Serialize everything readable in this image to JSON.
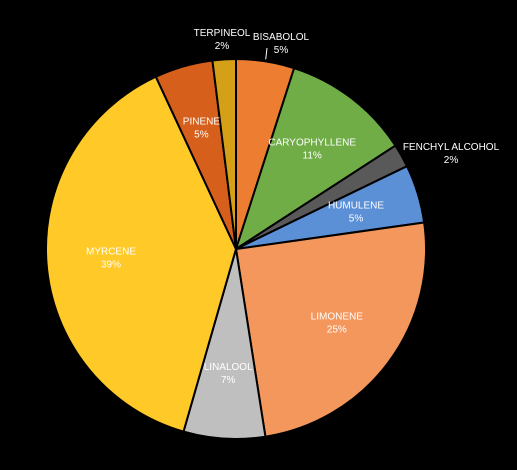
{
  "chart_data": {
    "type": "pie",
    "title": "",
    "start_angle_deg": 0,
    "direction": "clockwise",
    "legend": "none",
    "series": [
      {
        "values": [
          5,
          11,
          2,
          5,
          25,
          7,
          39,
          5,
          2
        ],
        "categories": [
          "BISABOLOL",
          "CARYOPHYLLENE",
          "FENCHYL ALCOHOL",
          "HUMULENE",
          "LIMONENE",
          "LINALOOL",
          "MYRCENE",
          "PINENE",
          "TERPINEOL"
        ],
        "percent_labels": [
          "5%",
          "11%",
          "2%",
          "5%",
          "25%",
          "7%",
          "39%",
          "5%",
          "2%"
        ],
        "colors": [
          "#ED7D31",
          "#70AD47",
          "#595959",
          "#5B8FD6",
          "#F4975C",
          "#BFBFBF",
          "#FFCA28",
          "#D65F1C",
          "#D4A017"
        ],
        "label_colors": [
          "#FFFFFF",
          "#FFFFFF",
          "#FFFFFF",
          "#FFFFFF",
          "#FFFFFF",
          "#FFFFFF",
          "#FFFFFF",
          "#FFFFFF",
          "#FFFFFF"
        ],
        "label_placement": [
          "outside",
          "inside",
          "outside",
          "inside",
          "inside",
          "inside",
          "inside",
          "inside",
          "outside"
        ]
      }
    ]
  }
}
